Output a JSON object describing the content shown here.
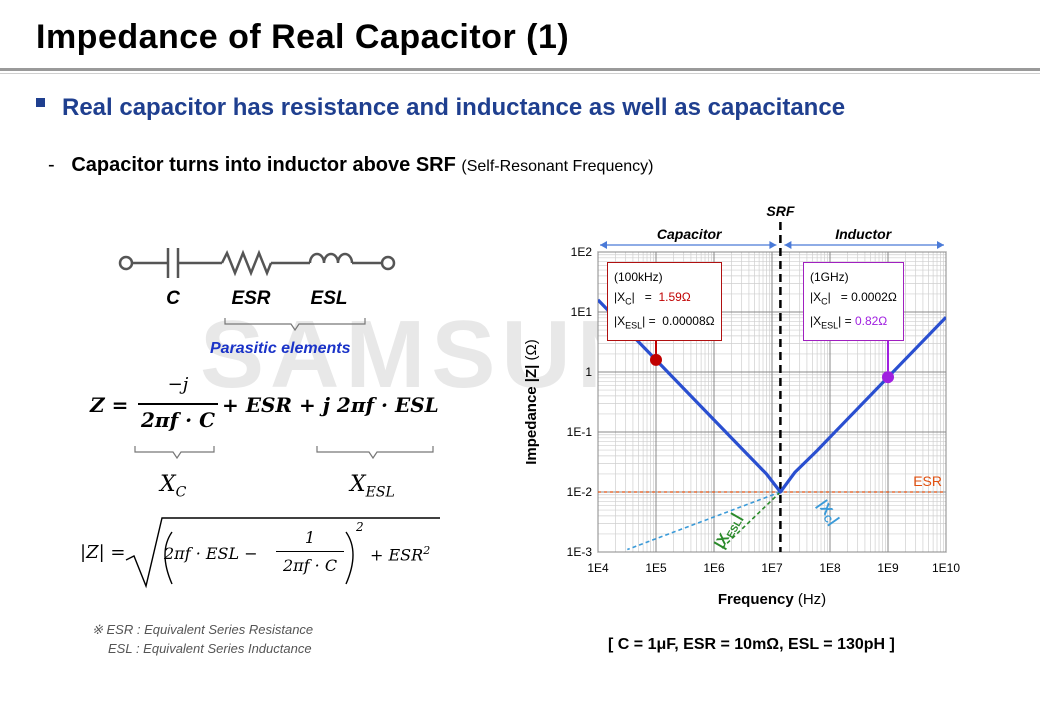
{
  "title": "Impedance of Real Capacitor (1)",
  "bullet": "Real capacitor has resistance and inductance as well as capacitance",
  "sub": {
    "dash": "-",
    "main": "Capacitor turns into inductor above SRF",
    "note": "(Self-Resonant Frequency)"
  },
  "watermark": "SAMSUNG",
  "circuit": {
    "labels": [
      "C",
      "ESR",
      "ESL"
    ],
    "parasitic": "Parasitic elements"
  },
  "formula": {
    "z_lhs": "Z =",
    "num": "−j",
    "den": "2πf · C",
    "rest": "+ ESR + j 2πf · ESL",
    "xc": "X",
    "xc_sub": "C",
    "xesl": "X",
    "xesl_sub": "ESL",
    "mag_lhs": "|Z| =",
    "mag_a": "2πf · ESL −",
    "mag_num": "1",
    "mag_den": "2πf · C",
    "mag_exp": "2",
    "mag_tail": "+ ESR",
    "mag_tail_exp": "2"
  },
  "footnote": {
    "line1": "※ ESR : Equivalent Series Resistance",
    "line2": "ESL : Equivalent Series Inductance"
  },
  "chart_data": {
    "type": "line",
    "xscale": "log",
    "yscale": "log",
    "xlim": [
      10000,
      10000000000
    ],
    "ylim": [
      0.001,
      100
    ],
    "x_ticks": [
      "1E4",
      "1E5",
      "1E6",
      "1E7",
      "1E8",
      "1E9",
      "1E10"
    ],
    "y_ticks": [
      "1E2",
      "1E1",
      "1",
      "1E-1",
      "1E-2",
      "1E-3"
    ],
    "xlabel": "Frequency",
    "xlabel_unit": "(Hz)",
    "ylabel": "Impedance |Z|",
    "ylabel_unit": "(Ω)",
    "srf_label": "SRF",
    "srf_hz": 13960000,
    "region_left": "Capacitor",
    "region_right": "Inductor",
    "esr_label": "ESR",
    "esr_value": 0.01,
    "xc_label": "|X",
    "xc_sub": "C",
    "xesl_label": "|X",
    "xesl_sub": "ESL",
    "series": [
      {
        "points": [
          [
            10000,
            15.9
          ],
          [
            100000,
            1.59
          ],
          [
            1000000,
            0.159
          ],
          [
            3000000,
            0.053
          ],
          [
            8000000,
            0.02
          ],
          [
            13960000,
            0.01
          ],
          [
            25000000,
            0.0215
          ],
          [
            60000000,
            0.049
          ],
          [
            100000000,
            0.082
          ],
          [
            1000000000,
            0.82
          ],
          [
            10000000000,
            8.2
          ]
        ]
      }
    ],
    "markers": [
      {
        "x": 100000,
        "y": 1.59,
        "color": "#c00000"
      },
      {
        "x": 1000000000,
        "y": 0.82,
        "color": "#a020e0"
      }
    ],
    "callout_left": {
      "freq": "(100kHz)",
      "xc_label": "|X",
      "xc_sub": "C",
      "xc_eq": "=",
      "xc_val": "1.59Ω",
      "xesl_label": "|X",
      "xesl_sub": "ESL",
      "xesl_eq": "=",
      "xesl_val": "0.00008Ω"
    },
    "callout_right": {
      "freq": "(1GHz)",
      "xc_label": "|X",
      "xc_sub": "C",
      "xc_eq": "=",
      "xc_val": "0.0002Ω",
      "xesl_label": "|X",
      "xesl_sub": "ESL",
      "xesl_eq": "=",
      "xesl_val": "0.82Ω"
    },
    "colors": {
      "curve": "#2a4fd0",
      "esr": "#e05010",
      "xc_line": "#3a9ad8",
      "xesl_line": "#2a8a2a",
      "accent_red": "#c00000",
      "accent_purple": "#a020e0"
    }
  },
  "params": "[ C = 1μF, ESR = 10mΩ, ESL = 130pH ]"
}
